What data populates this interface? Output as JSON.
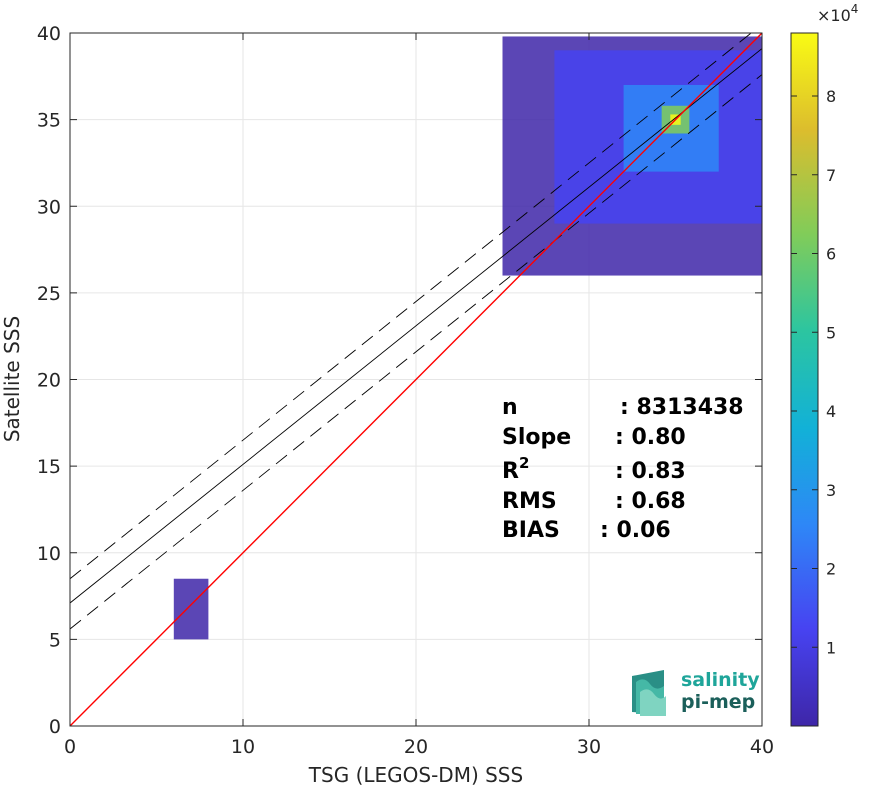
{
  "chart_data": {
    "type": "heatmap",
    "xlabel": "TSG (LEGOS-DM) SSS",
    "ylabel": "Satellite SSS",
    "xlim": [
      0,
      40
    ],
    "ylim": [
      0,
      40
    ],
    "xticks": [
      "0",
      "10",
      "20",
      "30",
      "40"
    ],
    "yticks": [
      "0",
      "5",
      "10",
      "15",
      "20",
      "25",
      "30",
      "35",
      "40"
    ],
    "grid": true,
    "colorbar": {
      "range": [
        0,
        88000
      ],
      "ticks": [
        "1",
        "2",
        "3",
        "4",
        "5",
        "6",
        "7",
        "8"
      ],
      "multiplier_base": "×10",
      "multiplier_exp": "4",
      "colormap": [
        "#3e26a8",
        "#4743f1",
        "#2e87f7",
        "#12b1d7",
        "#2cc5a0",
        "#81cc59",
        "#dcbd2d",
        "#f9fb14"
      ]
    },
    "lines": {
      "identity": {
        "slope": 1.0,
        "intercept": 0.0,
        "color": "#ff0000"
      },
      "fit": {
        "slope": 0.8,
        "intercept": 7.1
      },
      "fit_upper": {
        "slope": 0.8,
        "intercept": 8.5
      },
      "fit_lower": {
        "slope": 0.8,
        "intercept": 5.6
      }
    },
    "density_clusters": [
      {
        "x": [
          25,
          40
        ],
        "y": [
          26,
          39.8
        ],
        "level": 0.05
      },
      {
        "x": [
          28,
          40
        ],
        "y": [
          29,
          39
        ],
        "level": 0.12
      },
      {
        "x": [
          32,
          37.5
        ],
        "y": [
          32,
          37
        ],
        "level": 0.3
      },
      {
        "x": [
          34.2,
          35.8
        ],
        "y": [
          34.2,
          35.8
        ],
        "level": 0.7
      },
      {
        "x": [
          34.7,
          35.3
        ],
        "y": [
          34.7,
          35.3
        ],
        "level": 1.0
      },
      {
        "x": [
          6,
          8
        ],
        "y": [
          5,
          8.5
        ],
        "level": 0.05
      }
    ],
    "stats": [
      {
        "label": "n",
        "sup": "",
        "value": ": 8313438"
      },
      {
        "label": "Slope",
        "sup": "",
        "value": ": 0.80"
      },
      {
        "label": "R",
        "sup": "2",
        "value": ": 0.83"
      },
      {
        "label": "RMS",
        "sup": "",
        "value": ": 0.68"
      },
      {
        "label": "BIAS",
        "sup": "",
        "value": ": 0.06"
      }
    ]
  },
  "logo": {
    "line1": "salinity",
    "line2": "pi-mep"
  },
  "colors": {
    "accent": "#1fa59a",
    "scatter": "#3d2aa6",
    "axis": "#262626",
    "grid": "#e6e6e6"
  }
}
